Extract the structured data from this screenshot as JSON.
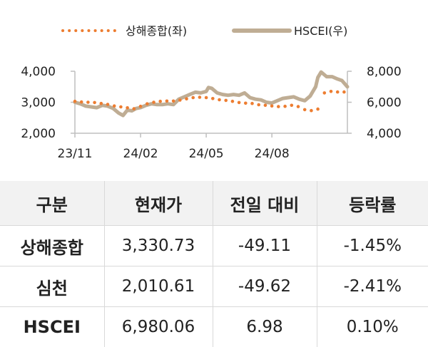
{
  "legend": {
    "series1": "상해종합(좌)",
    "series2": "HSCEI(우)"
  },
  "colors": {
    "series1": "#ed7d31",
    "series2": "#bfad94",
    "axis": "#bfbfbf",
    "header_bg": "#f2f2f2"
  },
  "chart_data": {
    "type": "line",
    "x_tick_labels": [
      "23/11",
      "24/02",
      "24/05",
      "24/08"
    ],
    "y_left": {
      "range": [
        2000,
        4000
      ],
      "ticks": [
        "2,000",
        "3,000",
        "4,000"
      ]
    },
    "y_right": {
      "range": [
        4000,
        8000
      ],
      "ticks": [
        "4,000",
        "6,000",
        "8,000"
      ]
    },
    "grid": false,
    "legend_position": "top",
    "series": [
      {
        "name": "상해종합(좌)",
        "axis": "left",
        "style": "dotted",
        "x_months": [
          0.0,
          0.3,
          0.6,
          0.9,
          1.2,
          1.5,
          1.8,
          2.1,
          2.4,
          2.7,
          3.0,
          3.3,
          3.6,
          3.9,
          4.2,
          4.5,
          4.8,
          5.1,
          5.4,
          5.7,
          6.0,
          6.3,
          6.6,
          6.9,
          7.2,
          7.5,
          7.8,
          8.1,
          8.4,
          8.7,
          9.0,
          9.3,
          9.6,
          9.9,
          10.2,
          10.5,
          10.8,
          11.1,
          11.4,
          11.7,
          12.0,
          12.3
        ],
        "values": [
          3030,
          3010,
          3000,
          2990,
          2960,
          2930,
          2880,
          2850,
          2820,
          2790,
          2870,
          2950,
          3000,
          3030,
          3040,
          3040,
          3070,
          3110,
          3150,
          3160,
          3150,
          3120,
          3080,
          3060,
          3030,
          2990,
          2970,
          2960,
          2920,
          2900,
          2880,
          2860,
          2870,
          2900,
          2860,
          2760,
          2730,
          2780,
          3300,
          3350,
          3330,
          3330
        ]
      },
      {
        "name": "HSCEI(우)",
        "axis": "right",
        "style": "solid",
        "x_months": [
          0.0,
          0.25,
          0.5,
          0.75,
          1.0,
          1.25,
          1.5,
          1.75,
          2.0,
          2.2,
          2.4,
          2.6,
          2.8,
          3.0,
          3.25,
          3.5,
          3.75,
          4.0,
          4.25,
          4.5,
          4.75,
          5.0,
          5.25,
          5.5,
          5.75,
          6.0,
          6.1,
          6.25,
          6.5,
          6.75,
          7.0,
          7.25,
          7.5,
          7.75,
          8.0,
          8.25,
          8.5,
          8.75,
          9.0,
          9.25,
          9.5,
          9.75,
          10.0,
          10.25,
          10.5,
          10.75,
          11.0,
          11.1,
          11.25,
          11.5,
          11.75,
          12.0,
          12.2,
          12.45
        ],
        "values": [
          6000,
          5900,
          5750,
          5700,
          5650,
          5800,
          5750,
          5600,
          5300,
          5150,
          5500,
          5450,
          5600,
          5650,
          5800,
          5900,
          5850,
          5850,
          5900,
          5850,
          6200,
          6350,
          6500,
          6650,
          6600,
          6700,
          6950,
          6900,
          6600,
          6500,
          6450,
          6500,
          6450,
          6600,
          6300,
          6200,
          6150,
          6000,
          5950,
          6100,
          6250,
          6300,
          6350,
          6200,
          6100,
          6400,
          7000,
          7600,
          7950,
          7650,
          7650,
          7500,
          7400,
          7000
        ]
      }
    ]
  },
  "table": {
    "headers": [
      "구분",
      "현재가",
      "전일 대비",
      "등락률"
    ],
    "rows": [
      {
        "name": "상해종합",
        "price": "3,330.73",
        "change": "-49.11",
        "pct": "-1.45%"
      },
      {
        "name": "심천",
        "price": "2,010.61",
        "change": "-49.62",
        "pct": "-2.41%"
      },
      {
        "name": "HSCEI",
        "price": "6,980.06",
        "change": "6.98",
        "pct": "0.10%"
      }
    ]
  }
}
